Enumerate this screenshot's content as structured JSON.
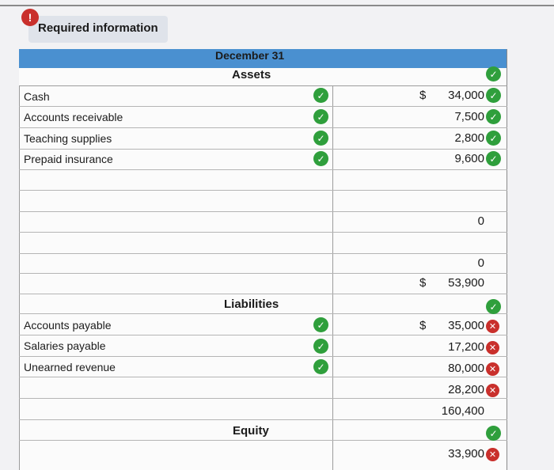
{
  "header": {
    "alert_symbol": "!",
    "required_label": "Required information"
  },
  "table": {
    "period_header": "December 31",
    "assets_header": "Assets",
    "liabilities_header": "Liabilities",
    "equity_header": "Equity",
    "currency_symbol": "$",
    "assets": [
      {
        "label": "Cash",
        "value": "34,000"
      },
      {
        "label": "Accounts receivable",
        "value": "7,500"
      },
      {
        "label": "Teaching supplies",
        "value": "2,800"
      },
      {
        "label": "Prepaid insurance",
        "value": "9,600"
      }
    ],
    "asset_blank_values": [
      "0",
      "0"
    ],
    "total_assets": "53,900",
    "liabilities": [
      {
        "label": "Accounts payable",
        "value": "35,000"
      },
      {
        "label": "Salaries payable",
        "value": "17,200"
      },
      {
        "label": "Unearned revenue",
        "value": "80,000"
      }
    ],
    "liability_extra_value": "28,200",
    "total_liabilities": "160,400",
    "equity_value": "33,900"
  },
  "icons": {
    "correct": "check-circle-icon",
    "incorrect": "x-circle-icon"
  },
  "colors": {
    "header_bar": "#4a90d0",
    "correct": "#2f9f3c",
    "incorrect": "#c9302c"
  }
}
